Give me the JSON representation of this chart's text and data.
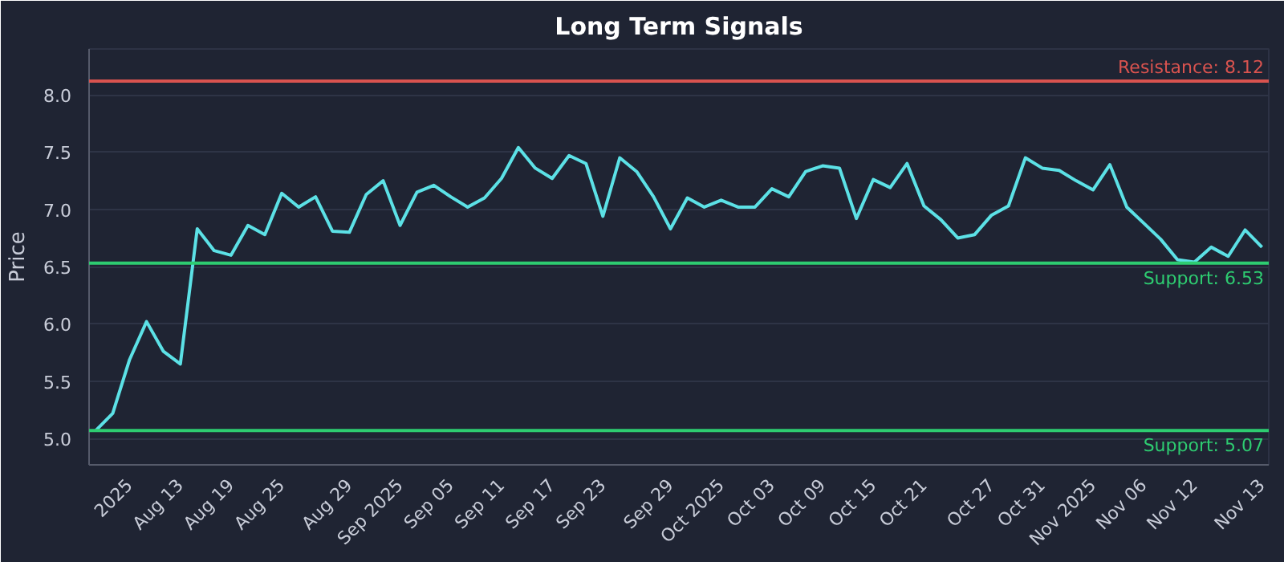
{
  "chart_data": {
    "type": "line",
    "title": "Long Term Signals",
    "ylabel": "Price",
    "categories": [
      null,
      null,
      "2025",
      null,
      null,
      "Aug 13",
      null,
      null,
      "Aug 19",
      null,
      null,
      "Aug 25",
      null,
      null,
      null,
      "Aug 29",
      null,
      null,
      "Sep 2025",
      null,
      null,
      "Sep 05",
      null,
      null,
      "Sep 11",
      null,
      null,
      "Sep 17",
      null,
      null,
      "Sep 23",
      null,
      null,
      null,
      "Sep 29",
      null,
      null,
      "Oct 2025",
      null,
      null,
      "Oct 03",
      null,
      null,
      "Oct 09",
      null,
      null,
      "Oct 15",
      null,
      null,
      "Oct 21",
      null,
      null,
      null,
      "Oct 27",
      null,
      null,
      "Oct 31",
      null,
      null,
      "Nov 2025",
      null,
      null,
      "Nov 06",
      null,
      null,
      "Nov 12",
      null,
      null,
      null,
      "Nov 13"
    ],
    "series": [
      {
        "color": "#5ce1e6",
        "values": [
          5.07,
          5.22,
          5.69,
          6.02,
          5.76,
          5.65,
          6.83,
          6.64,
          6.6,
          6.86,
          6.78,
          7.14,
          7.02,
          7.11,
          6.81,
          6.8,
          7.13,
          7.25,
          6.86,
          7.15,
          7.21,
          7.11,
          7.02,
          7.1,
          7.27,
          7.54,
          7.36,
          7.27,
          7.47,
          7.4,
          6.94,
          7.45,
          7.33,
          7.11,
          6.83,
          7.1,
          7.02,
          7.08,
          7.02,
          7.02,
          7.18,
          7.11,
          7.33,
          7.38,
          7.36,
          6.92,
          7.26,
          7.19,
          7.4,
          7.03,
          6.91,
          6.75,
          6.78,
          6.95,
          7.03,
          7.45,
          7.36,
          7.34,
          7.25,
          7.17,
          7.39,
          7.02,
          6.88,
          6.74,
          6.56,
          6.54,
          6.67,
          6.59,
          6.82,
          6.67
        ]
      }
    ],
    "ylim": [
      4.77,
      8.4
    ],
    "yticks": [
      {
        "value": 5,
        "label": "5.0"
      },
      {
        "value": 5.5,
        "label": "5.5"
      },
      {
        "value": 6,
        "label": "6.0"
      },
      {
        "value": 6.5,
        "label": "6.5"
      },
      {
        "value": 7,
        "label": "7.0"
      },
      {
        "value": 7.5,
        "label": "7.5"
      },
      {
        "value": 8,
        "label": "8.0"
      }
    ],
    "grid": "y",
    "marker": "none",
    "line_style": "solid",
    "ref_lines": [
      {
        "axis": "y",
        "value": 8.12,
        "label": "Resistance: 8.12",
        "color": "#d9534f"
      },
      {
        "axis": "y",
        "value": 6.53,
        "label": "Support: 6.53",
        "color": "#2ecc71"
      },
      {
        "axis": "y",
        "value": 5.07,
        "label": "Support: 5.07",
        "color": "#2ecc71"
      }
    ]
  }
}
